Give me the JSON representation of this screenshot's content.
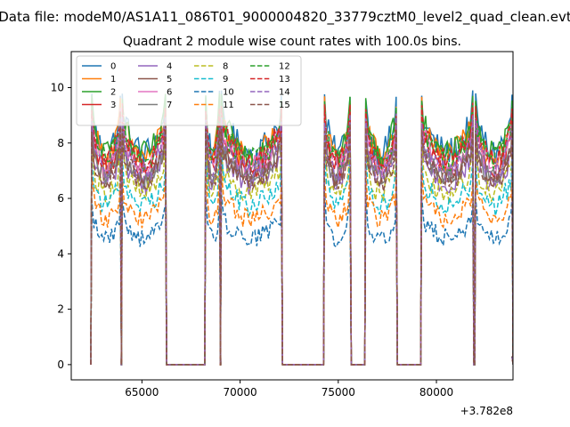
{
  "figure": {
    "suptitle": "Data file: modeM0/AS1A11_086T01_9000004820_33779cztM0_level2_quad_clean.evt",
    "title": "Quadrant 2 module wise count rates with 100.0s bins.",
    "x_offset_label": "+3.782e8"
  },
  "chart_data": {
    "type": "line",
    "title": "Quadrant 2 module wise count rates with 100.0s bins.",
    "xlabel": "",
    "ylabel": "",
    "x_offset": 378200000,
    "xlim": [
      61400,
      83900
    ],
    "ylim": [
      -0.55,
      11.3
    ],
    "xticks": [
      65000,
      70000,
      75000,
      80000
    ],
    "xtick_labels": [
      "65000",
      "70000",
      "75000",
      "80000"
    ],
    "yticks": [
      0,
      2,
      4,
      6,
      8,
      10
    ],
    "ytick_labels": [
      "0",
      "2",
      "4",
      "6",
      "8",
      "10"
    ],
    "grid": false,
    "legend_location": "upper left",
    "legend_columns": 4,
    "segments": [
      [
        62450,
        63950
      ],
      [
        68250,
        69050
      ],
      [
        72150,
        73050
      ],
      [
        79250,
        81850
      ]
    ],
    "segments_all": [
      [
        62450,
        63950
      ],
      [
        68250,
        69050
      ],
      [
        72150,
        73050
      ],
      [
        74350,
        75850
      ],
      [
        76350,
        77850
      ],
      [
        79250,
        81850
      ],
      [
        82050,
        83850
      ]
    ],
    "orbits": [
      {
        "start": 62450,
        "end": 63950
      },
      {
        "start": 68250,
        "end": 69050
      },
      {
        "start": 72150,
        "end": 73050
      },
      {
        "start": 74350,
        "end": 75850
      },
      {
        "start": 76350,
        "end": 77850
      },
      {
        "start": 79250,
        "end": 81850
      },
      {
        "start": 82050,
        "end": 83850
      }
    ],
    "orbit_windows": [
      {
        "on": 62450,
        "off": 63950,
        "shape": "long"
      },
      {
        "on": 66250,
        "off": 66250,
        "shape": "none"
      }
    ],
    "data_windows": [
      {
        "rise": 62450,
        "fall": 63900
      },
      {
        "rise": 64000,
        "fall": 66200
      },
      {
        "rise": 68250,
        "fall": 68950
      },
      {
        "rise": 69050,
        "fall": 72100
      },
      {
        "rise": 74300,
        "fall": 75600
      },
      {
        "rise": 76400,
        "fall": 77950
      },
      {
        "rise": 79250,
        "fall": 81850
      },
      {
        "rise": 82000,
        "fall": 83850
      }
    ],
    "series": [
      {
        "name": "0",
        "color": "#1f77b4",
        "dash": "solid",
        "level": 8.9,
        "spread": 0.55
      },
      {
        "name": "1",
        "color": "#ff7f0e",
        "dash": "solid",
        "level": 8.7,
        "spread": 0.55
      },
      {
        "name": "2",
        "color": "#2ca02c",
        "dash": "solid",
        "level": 8.8,
        "spread": 0.5
      },
      {
        "name": "3",
        "color": "#d62728",
        "dash": "solid",
        "level": 8.2,
        "spread": 0.4
      },
      {
        "name": "4",
        "color": "#9467bd",
        "dash": "solid",
        "level": 7.6,
        "spread": 0.45
      },
      {
        "name": "5",
        "color": "#8c564b",
        "dash": "solid",
        "level": 7.9,
        "spread": 0.4
      },
      {
        "name": "6",
        "color": "#e377c2",
        "dash": "solid",
        "level": 8.3,
        "spread": 0.45
      },
      {
        "name": "7",
        "color": "#7f7f7f",
        "dash": "solid",
        "level": 7.8,
        "spread": 0.4
      },
      {
        "name": "8",
        "color": "#bcbd22",
        "dash": "dashed",
        "level": 7.2,
        "spread": 0.45
      },
      {
        "name": "9",
        "color": "#17becf",
        "dash": "dashed",
        "level": 6.7,
        "spread": 0.4
      },
      {
        "name": "10",
        "color": "#1f77b4",
        "dash": "dashed",
        "level": 5.3,
        "spread": 0.35
      },
      {
        "name": "11",
        "color": "#ff7f0e",
        "dash": "dashed",
        "level": 6.1,
        "spread": 0.35
      },
      {
        "name": "12",
        "color": "#2ca02c",
        "dash": "dashed",
        "level": 8.6,
        "spread": 0.45
      },
      {
        "name": "13",
        "color": "#d62728",
        "dash": "dashed",
        "level": 8.5,
        "spread": 0.45
      },
      {
        "name": "14",
        "color": "#9467bd",
        "dash": "dashed",
        "level": 8.1,
        "spread": 0.45
      },
      {
        "name": "15",
        "color": "#8c564b",
        "dash": "dashed",
        "level": 7.7,
        "spread": 0.4
      }
    ]
  }
}
